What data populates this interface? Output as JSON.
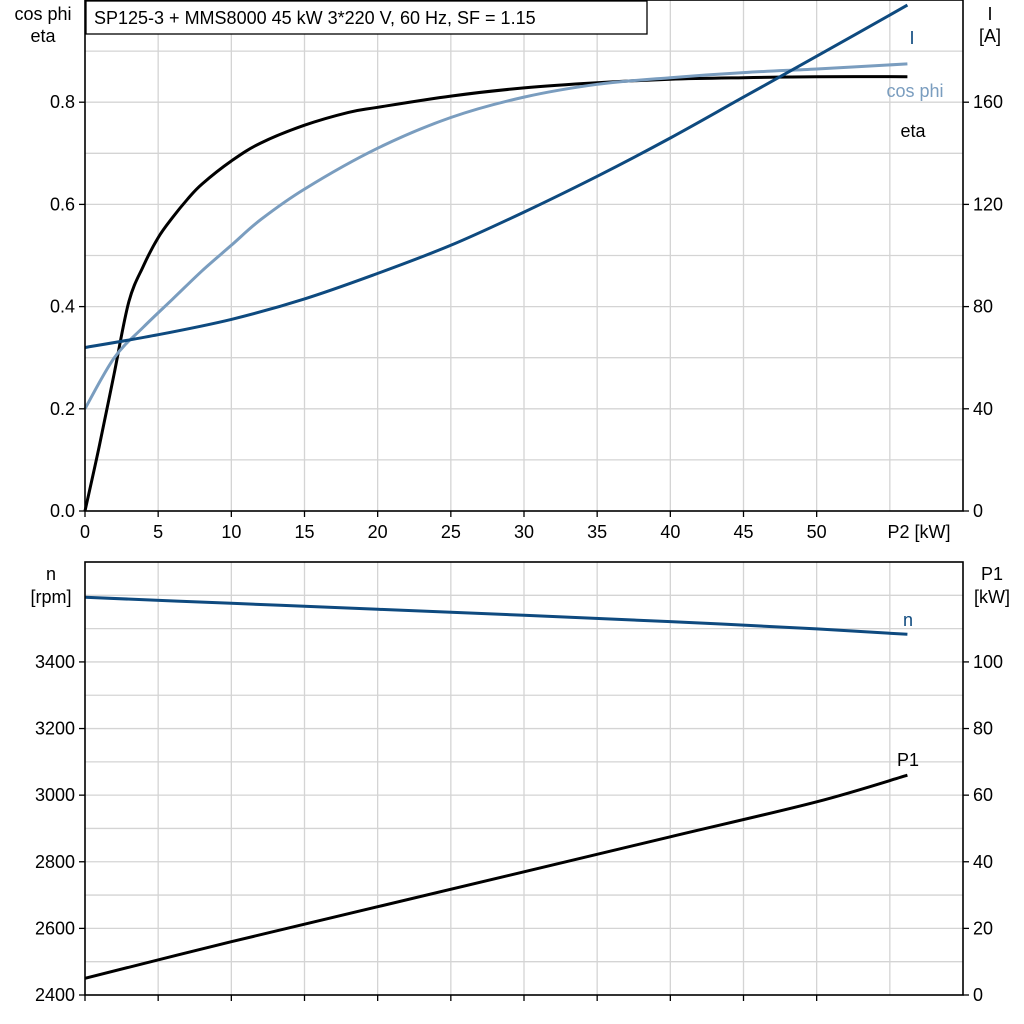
{
  "title": "SP125-3 + MMS8000   45 kW   3*220 V, 60 Hz, SF = 1.15",
  "chart_data": [
    {
      "type": "line",
      "x": {
        "label": "P2 [kW]",
        "range": [
          0,
          60
        ],
        "ticks": [
          0,
          5,
          10,
          15,
          20,
          25,
          30,
          35,
          40,
          45,
          50
        ],
        "grid": true
      },
      "y_left": {
        "label_line1": "cos phi",
        "label_line2": "eta",
        "range": [
          0,
          1.0
        ],
        "ticks": [
          0.0,
          0.2,
          0.4,
          0.6,
          0.8
        ],
        "tick_labels": [
          "0.0",
          "0.2",
          "0.4",
          "0.6",
          "0.8"
        ]
      },
      "y_right": {
        "label_line1": "I",
        "label_line2": "[A]",
        "range": [
          0,
          200
        ],
        "ticks": [
          0,
          40,
          80,
          120,
          160
        ],
        "tick_labels": [
          "0",
          "40",
          "80",
          "120",
          "160"
        ]
      },
      "series": [
        {
          "name": "eta",
          "axis": "left",
          "color": "#000000",
          "points": [
            [
              0,
              0
            ],
            [
              1,
              0.13
            ],
            [
              2,
              0.27
            ],
            [
              3,
              0.41
            ],
            [
              4,
              0.48
            ],
            [
              5,
              0.535
            ],
            [
              6,
              0.575
            ],
            [
              7,
              0.61
            ],
            [
              8,
              0.64
            ],
            [
              10,
              0.685
            ],
            [
              12,
              0.72
            ],
            [
              15,
              0.755
            ],
            [
              18,
              0.78
            ],
            [
              20,
              0.79
            ],
            [
              25,
              0.812
            ],
            [
              30,
              0.828
            ],
            [
              35,
              0.838
            ],
            [
              40,
              0.845
            ],
            [
              45,
              0.848
            ],
            [
              50,
              0.85
            ],
            [
              56.2,
              0.85
            ]
          ]
        },
        {
          "name": "cos phi",
          "axis": "left",
          "color": "#7a9dbf",
          "points": [
            [
              0,
              0.2
            ],
            [
              2,
              0.3
            ],
            [
              4,
              0.36
            ],
            [
              6,
              0.415
            ],
            [
              8,
              0.47
            ],
            [
              10,
              0.52
            ],
            [
              12,
              0.57
            ],
            [
              15,
              0.63
            ],
            [
              20,
              0.71
            ],
            [
              25,
              0.77
            ],
            [
              30,
              0.81
            ],
            [
              35,
              0.835
            ],
            [
              40,
              0.848
            ],
            [
              45,
              0.858
            ],
            [
              50,
              0.865
            ],
            [
              56.2,
              0.875
            ]
          ]
        },
        {
          "name": "I",
          "axis": "right",
          "color": "#0e4a7f",
          "points": [
            [
              0,
              64
            ],
            [
              5,
              69
            ],
            [
              10,
              75
            ],
            [
              15,
              83
            ],
            [
              20,
              93
            ],
            [
              25,
              104
            ],
            [
              30,
              117
            ],
            [
              35,
              131
            ],
            [
              40,
              146
            ],
            [
              45,
              162
            ],
            [
              50,
              178
            ],
            [
              56.2,
              198
            ]
          ]
        }
      ]
    },
    {
      "type": "line",
      "x": {
        "range": [
          0,
          60
        ],
        "ticks": [
          0,
          5,
          10,
          15,
          20,
          25,
          30,
          35,
          40,
          45,
          50
        ],
        "grid": true
      },
      "y_left": {
        "label_line1": "n",
        "label_line2": "[rpm]",
        "range": [
          2400,
          3700
        ],
        "ticks": [
          2400,
          2600,
          2800,
          3000,
          3200,
          3400
        ],
        "tick_labels": [
          "2400",
          "2600",
          "2800",
          "3000",
          "3200",
          "3400"
        ]
      },
      "y_right": {
        "label_line1": "P1",
        "label_line2": "[kW]",
        "range": [
          0,
          130
        ],
        "ticks": [
          0,
          20,
          40,
          60,
          80,
          100
        ],
        "tick_labels": [
          "0",
          "20",
          "40",
          "60",
          "80",
          "100"
        ]
      },
      "series": [
        {
          "name": "n",
          "axis": "left",
          "color": "#0e4a7f",
          "points": [
            [
              0,
              3594
            ],
            [
              10,
              3576
            ],
            [
              20,
              3558
            ],
            [
              30,
              3540
            ],
            [
              40,
              3521
            ],
            [
              50,
              3499
            ],
            [
              56.2,
              3483
            ]
          ]
        },
        {
          "name": "P1",
          "axis": "right",
          "color": "#000000",
          "points": [
            [
              0,
              5
            ],
            [
              10,
              16
            ],
            [
              20,
              26.5
            ],
            [
              30,
              37
            ],
            [
              40,
              47.5
            ],
            [
              50,
              58
            ],
            [
              56.2,
              66
            ]
          ]
        }
      ]
    }
  ]
}
